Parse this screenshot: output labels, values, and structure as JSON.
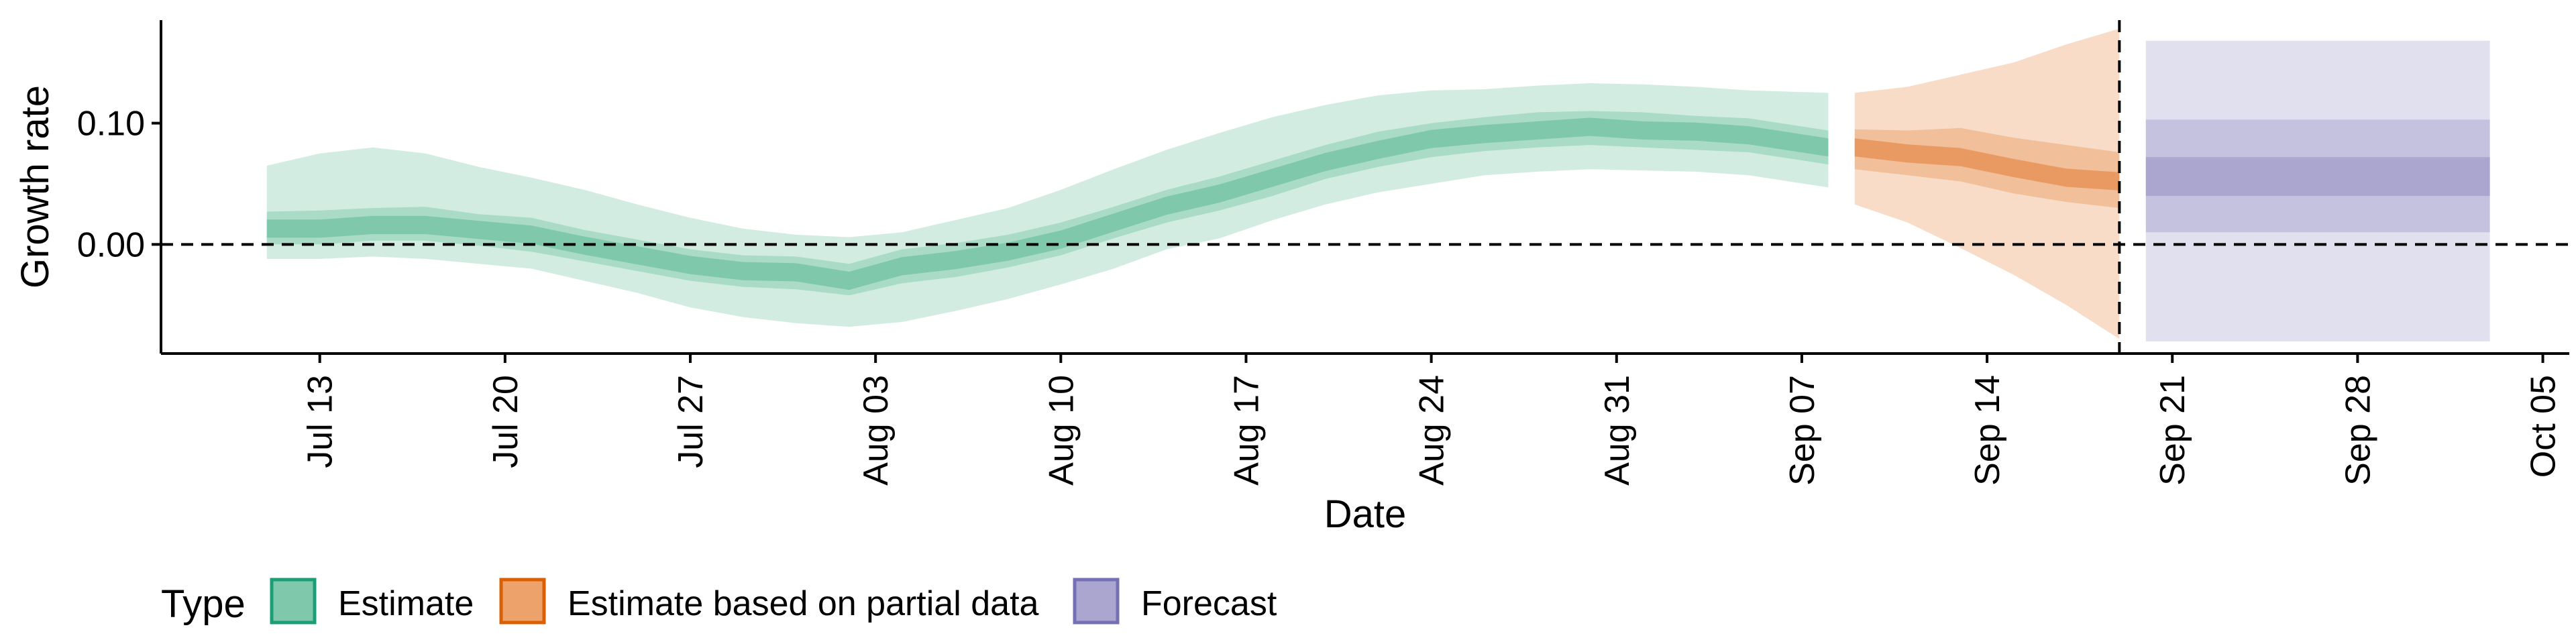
{
  "chart_data": {
    "type": "area",
    "xlabel": "Date",
    "ylabel": "Growth rate",
    "xlim": [
      "2020-07-07",
      "2020-10-06"
    ],
    "ylim": [
      -0.09,
      0.185
    ],
    "y_ticks": [
      {
        "value": 0.0,
        "label": "0.00"
      },
      {
        "value": 0.1,
        "label": "0.10"
      }
    ],
    "x_ticks": [
      {
        "date": "2020-07-13",
        "label": "Jul 13"
      },
      {
        "date": "2020-07-20",
        "label": "Jul 20"
      },
      {
        "date": "2020-07-27",
        "label": "Jul 27"
      },
      {
        "date": "2020-08-03",
        "label": "Aug 03"
      },
      {
        "date": "2020-08-10",
        "label": "Aug 10"
      },
      {
        "date": "2020-08-17",
        "label": "Aug 17"
      },
      {
        "date": "2020-08-24",
        "label": "Aug 24"
      },
      {
        "date": "2020-08-31",
        "label": "Aug 31"
      },
      {
        "date": "2020-09-07",
        "label": "Sep 07"
      },
      {
        "date": "2020-09-14",
        "label": "Sep 14"
      },
      {
        "date": "2020-09-21",
        "label": "Sep 21"
      },
      {
        "date": "2020-09-28",
        "label": "Sep 28"
      },
      {
        "date": "2020-10-05",
        "label": "Oct 05"
      }
    ],
    "hline_y": 0.0,
    "vline_date": "2020-09-19",
    "grid": false,
    "legend": {
      "title": "Type",
      "position": "bottom-left",
      "entries": [
        {
          "label": "Estimate",
          "fill": "#7fc8ab",
          "border": "#1b9e77"
        },
        {
          "label": "Estimate based on partial data",
          "fill": "#eda26b",
          "border": "#d95f02"
        },
        {
          "label": "Forecast",
          "fill": "#aaa6d0",
          "border": "#7570b3"
        }
      ]
    },
    "colors": {
      "estimate": [
        "#d3ece2",
        "#a9dbc6",
        "#7fc8ab"
      ],
      "partial": [
        "#f8dcc8",
        "#f1bf99",
        "#e99a63"
      ],
      "forecast": [
        "#e0e0ee",
        "#c5c2e0",
        "#aaa6d0"
      ]
    },
    "series": [
      {
        "type": "Estimate",
        "x": [
          "2020-07-11",
          "2020-07-13",
          "2020-07-15",
          "2020-07-17",
          "2020-07-19",
          "2020-07-21",
          "2020-07-23",
          "2020-07-25",
          "2020-07-27",
          "2020-07-29",
          "2020-07-31",
          "2020-08-02",
          "2020-08-04",
          "2020-08-06",
          "2020-08-08",
          "2020-08-10",
          "2020-08-12",
          "2020-08-14",
          "2020-08-16",
          "2020-08-18",
          "2020-08-20",
          "2020-08-22",
          "2020-08-24",
          "2020-08-26",
          "2020-08-28",
          "2020-08-30",
          "2020-09-01",
          "2020-09-03",
          "2020-09-05",
          "2020-09-08"
        ],
        "median": [
          0.013,
          0.013,
          0.016,
          0.016,
          0.012,
          0.008,
          -0.001,
          -0.009,
          -0.017,
          -0.022,
          -0.023,
          -0.03,
          -0.018,
          -0.013,
          -0.006,
          0.004,
          0.018,
          0.032,
          0.042,
          0.055,
          0.068,
          0.078,
          0.087,
          0.091,
          0.094,
          0.097,
          0.094,
          0.093,
          0.09,
          0.08
        ],
        "inner": [
          [
            0.0,
            0.027
          ],
          [
            0.0,
            0.028
          ],
          [
            0.003,
            0.03
          ],
          [
            0.003,
            0.031
          ],
          [
            -0.001,
            0.025
          ],
          [
            -0.006,
            0.022
          ],
          [
            -0.014,
            0.012
          ],
          [
            -0.022,
            0.004
          ],
          [
            -0.03,
            -0.004
          ],
          [
            -0.035,
            -0.009
          ],
          [
            -0.037,
            -0.01
          ],
          [
            -0.042,
            -0.016
          ],
          [
            -0.032,
            -0.004
          ],
          [
            -0.027,
            0.001
          ],
          [
            -0.019,
            0.008
          ],
          [
            -0.009,
            0.018
          ],
          [
            0.005,
            0.031
          ],
          [
            0.018,
            0.045
          ],
          [
            0.028,
            0.056
          ],
          [
            0.04,
            0.069
          ],
          [
            0.054,
            0.082
          ],
          [
            0.064,
            0.093
          ],
          [
            0.072,
            0.1
          ],
          [
            0.077,
            0.105
          ],
          [
            0.08,
            0.109
          ],
          [
            0.082,
            0.11
          ],
          [
            0.08,
            0.109
          ],
          [
            0.078,
            0.106
          ],
          [
            0.076,
            0.104
          ],
          [
            0.066,
            0.094
          ]
        ],
        "outer": [
          [
            -0.012,
            0.065
          ],
          [
            -0.012,
            0.075
          ],
          [
            -0.01,
            0.08
          ],
          [
            -0.012,
            0.075
          ],
          [
            -0.016,
            0.064
          ],
          [
            -0.02,
            0.055
          ],
          [
            -0.03,
            0.045
          ],
          [
            -0.04,
            0.033
          ],
          [
            -0.052,
            0.022
          ],
          [
            -0.06,
            0.013
          ],
          [
            -0.065,
            0.008
          ],
          [
            -0.068,
            0.006
          ],
          [
            -0.064,
            0.01
          ],
          [
            -0.055,
            0.02
          ],
          [
            -0.045,
            0.03
          ],
          [
            -0.033,
            0.045
          ],
          [
            -0.02,
            0.062
          ],
          [
            -0.004,
            0.078
          ],
          [
            0.005,
            0.092
          ],
          [
            0.02,
            0.105
          ],
          [
            0.033,
            0.115
          ],
          [
            0.043,
            0.123
          ],
          [
            0.05,
            0.127
          ],
          [
            0.057,
            0.128
          ],
          [
            0.06,
            0.131
          ],
          [
            0.062,
            0.133
          ],
          [
            0.061,
            0.132
          ],
          [
            0.06,
            0.13
          ],
          [
            0.057,
            0.127
          ],
          [
            0.047,
            0.125
          ]
        ]
      },
      {
        "type": "Estimate based on partial data",
        "x": [
          "2020-09-09",
          "2020-09-11",
          "2020-09-13",
          "2020-09-15",
          "2020-09-17",
          "2020-09-19"
        ],
        "median": [
          0.08,
          0.075,
          0.072,
          0.063,
          0.055,
          0.052
        ],
        "inner": [
          [
            0.062,
            0.095
          ],
          [
            0.057,
            0.094
          ],
          [
            0.052,
            0.096
          ],
          [
            0.042,
            0.088
          ],
          [
            0.035,
            0.082
          ],
          [
            0.03,
            0.076
          ]
        ],
        "outer": [
          [
            0.033,
            0.125
          ],
          [
            0.018,
            0.13
          ],
          [
            -0.003,
            0.14
          ],
          [
            -0.025,
            0.15
          ],
          [
            -0.05,
            0.165
          ],
          [
            -0.078,
            0.178
          ]
        ]
      },
      {
        "type": "Forecast",
        "x": [
          "2020-09-20",
          "2020-10-03"
        ],
        "median": [
          0.057,
          0.057
        ],
        "inner": [
          [
            0.04,
            0.072
          ],
          [
            0.04,
            0.072
          ]
        ],
        "outer": [
          [
            0.01,
            0.103
          ],
          [
            0.01,
            0.103
          ]
        ],
        "outermost": [
          [
            -0.08,
            0.168
          ],
          [
            -0.08,
            0.168
          ]
        ]
      }
    ]
  }
}
